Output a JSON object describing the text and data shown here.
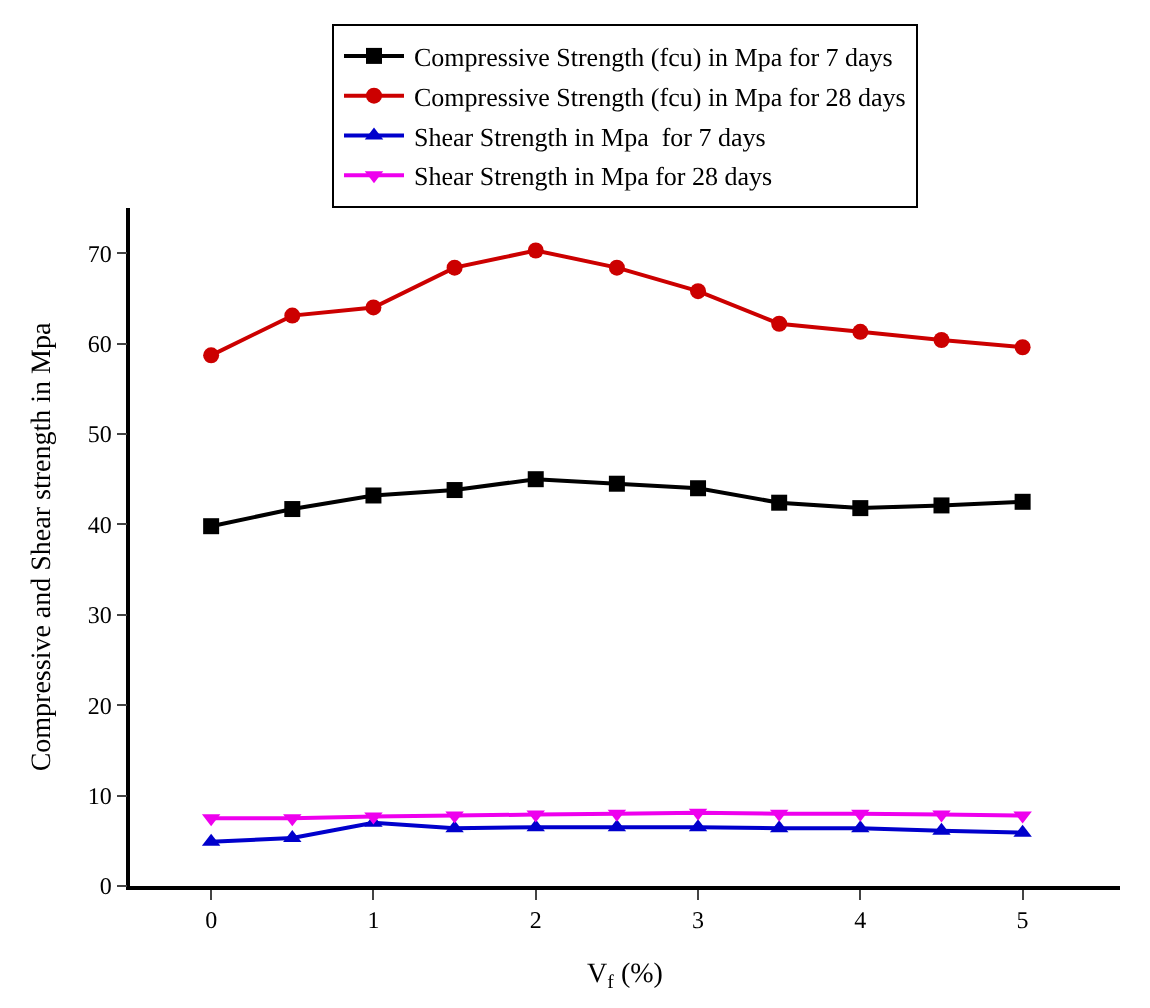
{
  "chart_data": {
    "type": "line",
    "xlabel": "V$_{f}$ (%)",
    "ylabel": "Compressive and Shear strength in Mpa",
    "x": [
      0,
      0.5,
      1,
      1.5,
      2,
      2.5,
      3,
      3.5,
      4,
      4.5,
      5
    ],
    "xlim": [
      -0.5,
      5.6
    ],
    "xticks": [
      0,
      1,
      2,
      3,
      4,
      5
    ],
    "ylim": [
      0,
      75
    ],
    "yticks": [
      0,
      10,
      20,
      30,
      40,
      50,
      60,
      70
    ],
    "legend": "top",
    "line_style": "solid",
    "series": [
      {
        "name": "Compressive Strength (fcu) in Mpa for 7 days",
        "color": "#000000",
        "marker": "square",
        "values": [
          39.8,
          41.7,
          43.2,
          43.8,
          45.0,
          44.5,
          44.0,
          42.4,
          41.8,
          42.1,
          42.5
        ]
      },
      {
        "name": "Compressive Strength (fcu) in Mpa for 28 days",
        "color": "#cc0000",
        "marker": "circle",
        "values": [
          58.7,
          63.1,
          64.0,
          68.4,
          70.3,
          68.4,
          65.8,
          62.2,
          61.3,
          60.4,
          59.6
        ]
      },
      {
        "name": "Shear Strength in Mpa  for 7 days",
        "color": "#0000cc",
        "marker": "triangle",
        "values": [
          4.9,
          5.3,
          7.0,
          6.4,
          6.5,
          6.5,
          6.5,
          6.4,
          6.4,
          6.1,
          5.9
        ]
      },
      {
        "name": "Shear Strength in Mpa for 28 days",
        "color": "#ee00ee",
        "marker": "triangle-down",
        "values": [
          7.5,
          7.5,
          7.7,
          7.8,
          7.9,
          8.0,
          8.1,
          8.0,
          8.0,
          7.9,
          7.8
        ]
      }
    ]
  }
}
